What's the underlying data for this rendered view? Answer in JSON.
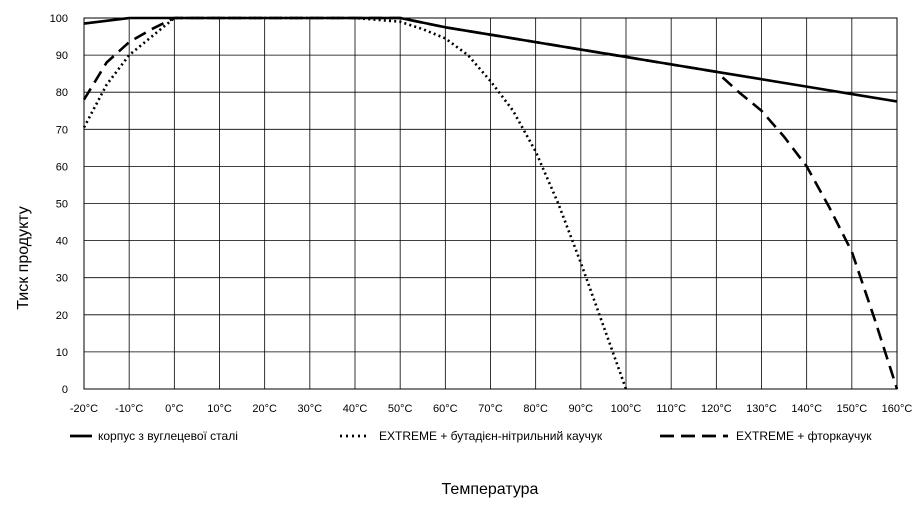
{
  "chart_data": {
    "type": "line",
    "xlabel": "Температура",
    "ylabel": "Тиск продукту",
    "x": [
      -20,
      -10,
      0,
      10,
      20,
      30,
      40,
      50,
      60,
      70,
      80,
      90,
      100,
      110,
      120,
      130,
      140,
      150,
      160
    ],
    "x_tick_labels": [
      "-20°C",
      "-10°C",
      "0°C",
      "10°C",
      "20°C",
      "30°C",
      "40°C",
      "50°C",
      "60°C",
      "70°C",
      "80°C",
      "90°C",
      "100°C",
      "110°C",
      "120°C",
      "130°C",
      "140°C",
      "150°C",
      "160°C"
    ],
    "y_ticks": [
      0,
      10,
      20,
      30,
      40,
      50,
      60,
      70,
      80,
      90,
      100
    ],
    "xlim": [
      -20,
      160
    ],
    "ylim": [
      0,
      100
    ],
    "grid": true,
    "legend_position": "bottom",
    "series": [
      {
        "name": "корпус з вуглецевої сталі",
        "style": "solid",
        "color": "#000000",
        "points": [
          [
            -20,
            98.5
          ],
          [
            -10,
            100
          ],
          [
            0,
            100
          ],
          [
            10,
            100
          ],
          [
            20,
            100
          ],
          [
            30,
            100
          ],
          [
            40,
            100
          ],
          [
            50,
            100
          ],
          [
            60,
            97.5
          ],
          [
            70,
            95.5
          ],
          [
            80,
            93.5
          ],
          [
            90,
            91.5
          ],
          [
            100,
            89.5
          ],
          [
            110,
            87.5
          ],
          [
            120,
            85.5
          ],
          [
            130,
            83.5
          ],
          [
            140,
            81.5
          ],
          [
            150,
            79.5
          ],
          [
            160,
            77.5
          ]
        ]
      },
      {
        "name": "EXTREME + бутадієн-нітрильний каучук",
        "style": "dotted",
        "color": "#000000",
        "points": [
          [
            -20,
            70.5
          ],
          [
            -15,
            82
          ],
          [
            -10,
            90
          ],
          [
            -5,
            95
          ],
          [
            0,
            100
          ],
          [
            10,
            100
          ],
          [
            20,
            100
          ],
          [
            30,
            100
          ],
          [
            40,
            100
          ],
          [
            50,
            99
          ],
          [
            55,
            97
          ],
          [
            60,
            94.5
          ],
          [
            65,
            90
          ],
          [
            70,
            83
          ],
          [
            75,
            75
          ],
          [
            80,
            64
          ],
          [
            85,
            50
          ],
          [
            90,
            34
          ],
          [
            95,
            17
          ],
          [
            100,
            0
          ]
        ]
      },
      {
        "name": "EXTREME + фторкаучук",
        "style": "dashed",
        "color": "#000000",
        "points": [
          [
            -20,
            78
          ],
          [
            -15,
            88
          ],
          [
            -10,
            93.5
          ],
          [
            -5,
            97
          ],
          [
            0,
            100
          ],
          [
            10,
            100
          ],
          [
            20,
            100
          ],
          [
            30,
            100
          ],
          [
            40,
            100
          ],
          [
            50,
            100
          ],
          [
            60,
            97.5
          ],
          [
            70,
            95.5
          ],
          [
            80,
            93.5
          ],
          [
            90,
            91.5
          ],
          [
            100,
            89.5
          ],
          [
            110,
            87.5
          ],
          [
            120,
            85.5
          ],
          [
            125,
            80
          ],
          [
            130,
            75
          ],
          [
            135,
            68
          ],
          [
            140,
            60
          ],
          [
            145,
            49
          ],
          [
            150,
            37
          ],
          [
            155,
            19
          ],
          [
            160,
            0
          ]
        ]
      }
    ]
  }
}
